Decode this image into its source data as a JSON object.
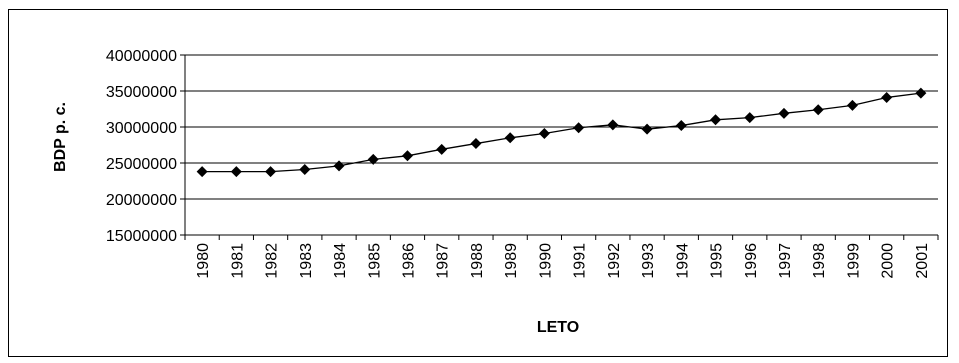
{
  "chart_data": {
    "type": "line",
    "title": "",
    "xlabel": "LETO",
    "ylabel": "BDP p. c.",
    "x": [
      "1980",
      "1981",
      "1982",
      "1983",
      "1984",
      "1985",
      "1986",
      "1987",
      "1988",
      "1989",
      "1990",
      "1991",
      "1992",
      "1993",
      "1994",
      "1995",
      "1996",
      "1997",
      "1998",
      "1999",
      "2000",
      "2001"
    ],
    "series": [
      {
        "values": [
          23800000,
          23800000,
          23800000,
          24100000,
          24600000,
          25500000,
          26000000,
          26900000,
          27700000,
          28500000,
          29100000,
          29900000,
          30300000,
          29700000,
          30200000,
          31000000,
          31300000,
          31900000,
          32400000,
          33000000,
          34100000,
          34700000
        ]
      }
    ],
    "ylim": [
      15000000,
      40000000
    ],
    "yticks": [
      "15000000",
      "20000000",
      "25000000",
      "30000000",
      "35000000",
      "40000000"
    ],
    "grid": "horizontal",
    "legend": "none",
    "colors": {
      "line": "#000000",
      "marker": "#000000",
      "grid": "#000000",
      "border": "#000000"
    },
    "marker": "diamond"
  }
}
